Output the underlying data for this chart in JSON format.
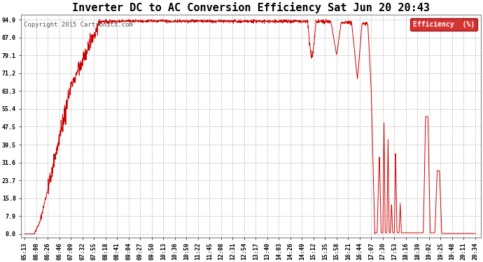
{
  "title": "Inverter DC to AC Conversion Efficiency Sat Jun 20 20:43",
  "copyright": "Copyright 2015 Cartronics.com",
  "legend_label": "Efficiency  (%)",
  "legend_bg": "#cc0000",
  "legend_text_color": "#ffffff",
  "line_color": "#cc0000",
  "bg_color": "#ffffff",
  "plot_bg": "#ffffff",
  "grid_color": "#bbbbbb",
  "yticks": [
    0.0,
    7.9,
    15.8,
    23.7,
    31.6,
    39.5,
    47.5,
    55.4,
    63.3,
    71.2,
    79.1,
    87.0,
    94.9
  ],
  "xtick_labels": [
    "05:13",
    "06:00",
    "06:26",
    "06:46",
    "07:09",
    "07:32",
    "07:55",
    "08:18",
    "08:41",
    "09:04",
    "09:27",
    "09:50",
    "10:13",
    "10:36",
    "10:59",
    "11:22",
    "11:45",
    "12:08",
    "12:31",
    "12:54",
    "13:17",
    "13:40",
    "14:03",
    "14:26",
    "14:49",
    "15:12",
    "15:35",
    "15:58",
    "16:21",
    "16:44",
    "17:07",
    "17:30",
    "17:53",
    "18:16",
    "18:39",
    "19:02",
    "19:25",
    "19:48",
    "20:11",
    "20:34"
  ],
  "title_fontsize": 11,
  "copyright_fontsize": 6.5,
  "tick_fontsize": 6,
  "figsize": [
    6.9,
    3.75
  ],
  "dpi": 100
}
